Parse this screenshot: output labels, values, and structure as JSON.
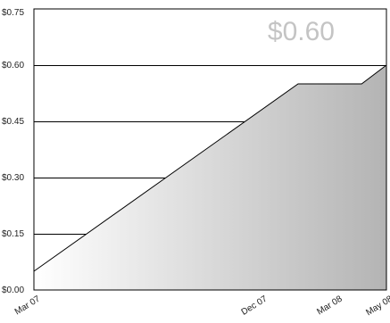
{
  "chart_data": {
    "type": "area",
    "current_value_label": "$0.60",
    "ylim": [
      0,
      0.75
    ],
    "yticks": [
      0,
      0.15,
      0.3,
      0.45,
      0.6,
      0.75
    ],
    "ytick_labels": [
      "$0.00",
      "$0.15",
      "$0.30",
      "$0.45",
      "$0.60",
      "$0.75"
    ],
    "xlim": [
      "2007-03-01",
      "2008-05-01"
    ],
    "xticks": [
      "2007-03-01",
      "2007-12-01",
      "2008-03-01",
      "2008-05-01"
    ],
    "xtick_labels": [
      "Mar 07",
      "Dec 07",
      "Mar 08",
      "May 08"
    ],
    "series": [
      {
        "x": [
          "2007-03-01",
          "2008-01-15",
          "2008-04-01",
          "2008-05-01"
        ],
        "y": [
          0.05,
          0.55,
          0.55,
          0.6
        ]
      }
    ],
    "grid": "horizontal",
    "legend": "none",
    "colors": {
      "fill_start": "#ffffff",
      "fill_end": "#b4b4b4",
      "line": "#000000",
      "grid": "#000000",
      "value_label": "#c4c4c4"
    }
  }
}
